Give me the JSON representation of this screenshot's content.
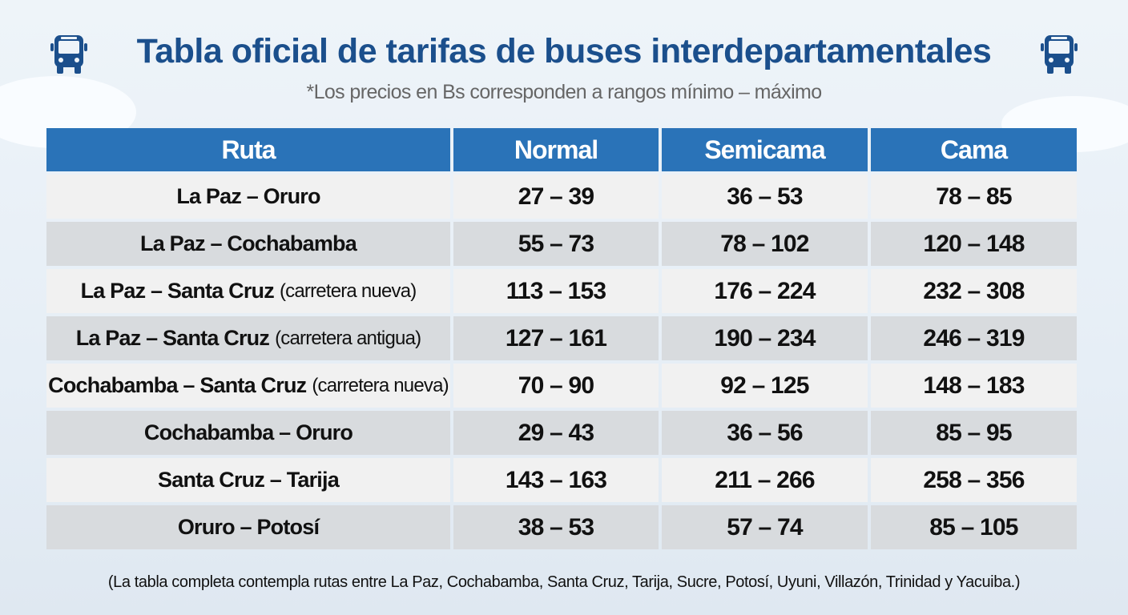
{
  "title": "Tabla oficial de tarifas de buses interdepartamentales",
  "subtitle": "*Los precios en Bs  corresponden a rangos mínimo – máximo",
  "icons": {
    "left": "bus-icon",
    "right": "bus-icon"
  },
  "colors": {
    "title": "#1b4f8c",
    "header": "#2a73b8",
    "row_light": "#f1f1f1",
    "row_dark": "#d8dbde"
  },
  "table": {
    "headers": [
      "Ruta",
      "Normal",
      "Semicama",
      "Cama"
    ],
    "rows": [
      {
        "route": "La Paz – Oruro",
        "note": "",
        "normal": "27 – 39",
        "semicama": "36 – 53",
        "cama": "78 – 85"
      },
      {
        "route": "La Paz – Cochabamba",
        "note": "",
        "normal": "55 – 73",
        "semicama": "78 – 102",
        "cama": "120 – 148"
      },
      {
        "route": "La Paz – Santa Cruz",
        "note": "(carretera nueva)",
        "normal": "113 – 153",
        "semicama": "176 – 224",
        "cama": "232 – 308"
      },
      {
        "route": "La Paz – Santa Cruz",
        "note": "(carretera antigua)",
        "normal": "127 – 161",
        "semicama": "190 – 234",
        "cama": "246 – 319"
      },
      {
        "route": "Cochabamba – Santa Cruz",
        "note": "(carretera nueva)",
        "normal": "70 – 90",
        "semicama": "92 – 125",
        "cama": "148 – 183"
      },
      {
        "route": "Cochabamba – Oruro",
        "note": "",
        "normal": "29 – 43",
        "semicama": "36 – 56",
        "cama": "85 – 95"
      },
      {
        "route": "Santa Cruz – Tarija",
        "note": "",
        "normal": "143 – 163",
        "semicama": "211 – 266",
        "cama": "258 – 356"
      },
      {
        "route": "Oruro – Potosí",
        "note": "",
        "normal": "38 – 53",
        "semicama": "57 – 74",
        "cama": "85 – 105"
      }
    ]
  },
  "footer": "(La tabla completa contempla rutas entre La Paz, Cochabamba, Santa Cruz, Tarija, Sucre, Potosí, Uyuni, Villazón, Trinidad y Yacuiba.)"
}
